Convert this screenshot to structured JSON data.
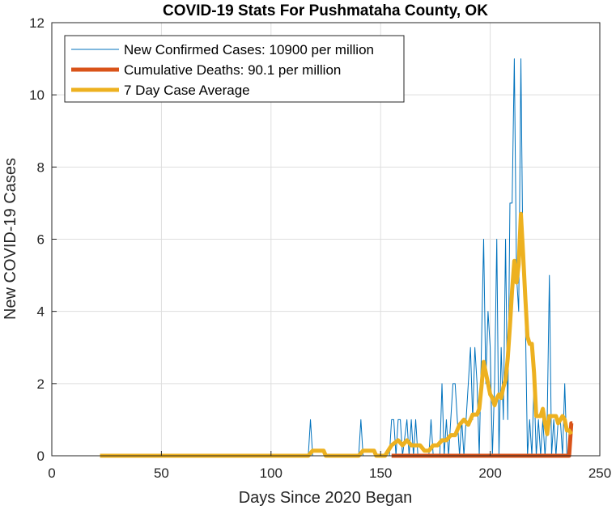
{
  "chart_data": {
    "type": "line",
    "title": "COVID-19 Stats For Pushmataha County, OK",
    "xlabel": "Days Since 2020 Began",
    "ylabel": "New COVID-19 Cases",
    "xlim": [
      0,
      250
    ],
    "ylim": [
      0,
      12
    ],
    "xticks": [
      0,
      50,
      100,
      150,
      200,
      250
    ],
    "yticks": [
      0,
      2,
      4,
      6,
      8,
      10,
      12
    ],
    "grid": true,
    "legend_position": "top-left",
    "series": [
      {
        "name": "New Confirmed Cases: 10900 per million",
        "color": "#0072BD",
        "style": "thin",
        "points": [
          [
            22,
            0
          ],
          [
            117,
            0
          ],
          [
            118,
            1
          ],
          [
            119,
            0
          ],
          [
            140,
            0
          ],
          [
            141,
            1
          ],
          [
            142,
            0
          ],
          [
            154,
            0
          ],
          [
            155,
            1
          ],
          [
            156,
            1
          ],
          [
            157,
            0
          ],
          [
            158,
            1
          ],
          [
            159,
            1
          ],
          [
            160,
            0
          ],
          [
            162,
            1
          ],
          [
            163,
            0
          ],
          [
            164,
            1
          ],
          [
            165,
            0
          ],
          [
            166,
            1
          ],
          [
            167,
            0
          ],
          [
            172,
            0
          ],
          [
            173,
            1
          ],
          [
            174,
            0
          ],
          [
            177,
            0
          ],
          [
            178,
            2
          ],
          [
            179,
            0
          ],
          [
            180,
            1
          ],
          [
            181,
            0
          ],
          [
            183,
            2
          ],
          [
            184,
            2
          ],
          [
            185,
            1
          ],
          [
            186,
            0
          ],
          [
            187,
            1
          ],
          [
            188,
            0
          ],
          [
            189,
            1
          ],
          [
            190,
            2
          ],
          [
            191,
            3
          ],
          [
            192,
            1
          ],
          [
            193,
            3
          ],
          [
            194,
            2
          ],
          [
            195,
            0
          ],
          [
            196,
            3
          ],
          [
            197,
            6
          ],
          [
            198,
            2
          ],
          [
            199,
            4
          ],
          [
            200,
            3
          ],
          [
            201,
            0
          ],
          [
            202,
            2
          ],
          [
            203,
            6
          ],
          [
            204,
            0
          ],
          [
            205,
            3
          ],
          [
            206,
            1
          ],
          [
            207,
            6
          ],
          [
            208,
            1
          ],
          [
            209,
            7
          ],
          [
            210,
            7
          ],
          [
            211,
            11
          ],
          [
            212,
            5
          ],
          [
            213,
            4
          ],
          [
            214,
            11
          ],
          [
            215,
            5
          ],
          [
            216,
            4
          ],
          [
            217,
            0
          ],
          [
            218,
            1
          ],
          [
            219,
            0
          ],
          [
            220,
            2
          ],
          [
            221,
            0
          ],
          [
            222,
            1
          ],
          [
            223,
            0
          ],
          [
            224,
            1
          ],
          [
            225,
            0
          ],
          [
            226,
            1
          ],
          [
            227,
            5
          ],
          [
            228,
            0
          ],
          [
            229,
            1
          ],
          [
            230,
            0
          ],
          [
            231,
            1
          ],
          [
            232,
            1
          ],
          [
            233,
            0
          ],
          [
            234,
            2
          ],
          [
            235,
            0
          ],
          [
            236,
            0
          ]
        ]
      },
      {
        "name": "Cumulative Deaths: 90.1 per million",
        "color": "#D95319",
        "style": "thick",
        "points": [
          [
            155,
            0
          ],
          [
            236,
            0
          ],
          [
            237,
            0.9
          ],
          [
            237.5,
            0.9
          ]
        ]
      },
      {
        "name": "7 Day Case Average",
        "color": "#EDB120",
        "style": "thick",
        "points": [
          [
            22,
            0
          ],
          [
            117,
            0
          ],
          [
            119,
            0.14
          ],
          [
            124,
            0.14
          ],
          [
            125,
            0
          ],
          [
            140,
            0
          ],
          [
            142,
            0.14
          ],
          [
            147,
            0.14
          ],
          [
            148,
            0
          ],
          [
            152,
            0
          ],
          [
            155,
            0.29
          ],
          [
            158,
            0.43
          ],
          [
            160,
            0.29
          ],
          [
            162,
            0.43
          ],
          [
            164,
            0.29
          ],
          [
            166,
            0.29
          ],
          [
            168,
            0.29
          ],
          [
            170,
            0.14
          ],
          [
            172,
            0.14
          ],
          [
            174,
            0.29
          ],
          [
            176,
            0.29
          ],
          [
            178,
            0.43
          ],
          [
            180,
            0.43
          ],
          [
            182,
            0.57
          ],
          [
            184,
            0.57
          ],
          [
            186,
            0.86
          ],
          [
            188,
            1.0
          ],
          [
            190,
            0.86
          ],
          [
            192,
            1.14
          ],
          [
            194,
            1.14
          ],
          [
            195,
            1.3
          ],
          [
            196,
            1.9
          ],
          [
            197,
            2.6
          ],
          [
            198,
            2.3
          ],
          [
            199,
            2.0
          ],
          [
            200,
            1.7
          ],
          [
            201,
            1.6
          ],
          [
            202,
            1.4
          ],
          [
            203,
            1.6
          ],
          [
            204,
            1.7
          ],
          [
            205,
            1.6
          ],
          [
            206,
            1.9
          ],
          [
            207,
            2.1
          ],
          [
            208,
            2.7
          ],
          [
            209,
            3.6
          ],
          [
            210,
            4.6
          ],
          [
            211,
            5.4
          ],
          [
            212,
            4.8
          ],
          [
            213,
            5.3
          ],
          [
            214,
            6.7
          ],
          [
            215,
            5.6
          ],
          [
            216,
            4.4
          ],
          [
            217,
            3.3
          ],
          [
            218,
            3.1
          ],
          [
            219,
            3.1
          ],
          [
            220,
            2.3
          ],
          [
            221,
            1.1
          ],
          [
            222,
            1.1
          ],
          [
            223,
            1.1
          ],
          [
            224,
            1.3
          ],
          [
            225,
            0.9
          ],
          [
            226,
            0.6
          ],
          [
            227,
            1.1
          ],
          [
            228,
            1.1
          ],
          [
            229,
            1.1
          ],
          [
            230,
            1.1
          ],
          [
            231,
            0.9
          ],
          [
            232,
            1.0
          ],
          [
            233,
            1.1
          ],
          [
            234,
            1.0
          ],
          [
            235,
            0.7
          ],
          [
            236,
            0.7
          ],
          [
            237,
            0.6
          ]
        ]
      }
    ]
  }
}
